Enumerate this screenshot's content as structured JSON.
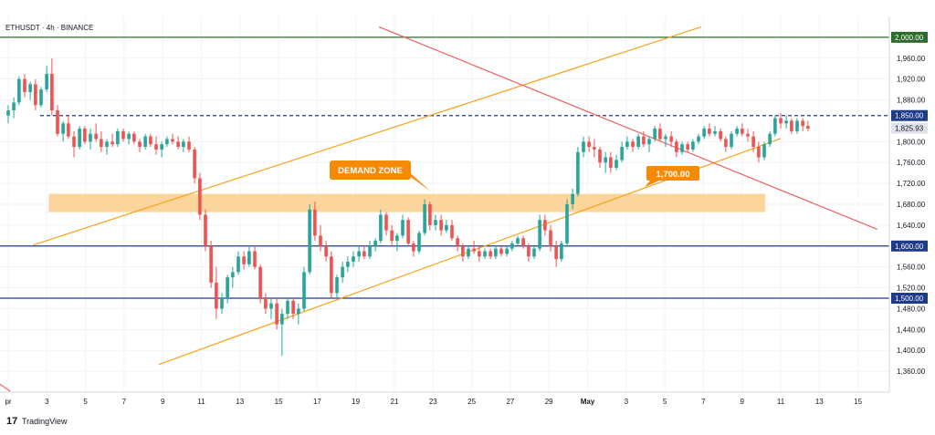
{
  "symbol_title": "ETHUSDT · 4h · BINANCE",
  "current_price": "1,825.93",
  "footer": {
    "brand": "TradingView",
    "logo_mark": "17"
  },
  "colors": {
    "up": "#26a69a",
    "down": "#ef5350",
    "channel": "#f7a21b",
    "trendline": "#f06060",
    "support": "#1e3a8a",
    "top_line": "#2e6b2e",
    "zone": "#fcd397",
    "label_orange": "#f58a07",
    "dashed": "#1e3a8a"
  },
  "chart_data": {
    "type": "candlestick",
    "symbol": "ETHUSDT",
    "interval": "4h",
    "exchange": "BINANCE",
    "yaxis": {
      "range": [
        1320,
        2040
      ],
      "ticks": [
        "1,360.00",
        "1,400.00",
        "1,440.00",
        "1,480.00",
        "1,520.00",
        "1,560.00",
        "1,640.00",
        "1,680.00",
        "1,720.00",
        "1,760.00",
        "1,800.00",
        "1,880.00",
        "1,920.00",
        "1,960.00"
      ],
      "tick_values": [
        1360,
        1400,
        1440,
        1480,
        1520,
        1560,
        1640,
        1680,
        1720,
        1760,
        1800,
        1880,
        1920,
        1960
      ]
    },
    "xaxis": {
      "range": [
        1,
        16.3
      ],
      "labels": [
        "pr",
        "3",
        "5",
        "7",
        "9",
        "11",
        "13",
        "15",
        "17",
        "19",
        "21",
        "23",
        "25",
        "27",
        "29",
        "May",
        "3",
        "5",
        "7",
        "9",
        "11",
        "13",
        "15"
      ],
      "label_days": [
        1,
        3,
        5,
        7,
        9,
        11,
        13,
        15,
        17,
        19,
        21,
        23,
        25,
        27,
        29,
        31,
        33,
        35,
        37,
        39,
        41,
        43,
        45
      ]
    },
    "levels": [
      {
        "name": "top-resistance",
        "value": 2000,
        "label": "2,000.00",
        "style": "solid"
      },
      {
        "name": "dashed-resistance",
        "value": 1850,
        "label": "1,850.00",
        "style": "dashed"
      },
      {
        "name": "support-1600",
        "value": 1600,
        "label": "1,600.00",
        "style": "solid"
      },
      {
        "name": "support-1500",
        "value": 1500,
        "label": "1,500.00",
        "style": "solid"
      }
    ],
    "zone": {
      "label": "DEMAND ZONE",
      "low": 1665,
      "high": 1700,
      "from_day": 3.1,
      "to_day": 40.2
    },
    "trendlines": [
      {
        "name": "channel-upper",
        "points": [
          [
            2.3,
            1602
          ],
          [
            36.9,
            2020
          ]
        ]
      },
      {
        "name": "channel-lower",
        "points": [
          [
            8.8,
            1373
          ],
          [
            41.0,
            1806
          ]
        ]
      },
      {
        "name": "descending-resistance",
        "points": [
          [
            20.2,
            2020
          ],
          [
            46.0,
            1632
          ]
        ]
      },
      {
        "name": "descending-old",
        "points": [
          [
            0.3,
            1342
          ],
          [
            1.1,
            1322
          ]
        ]
      }
    ],
    "annotations": [
      {
        "text": "1,700.00",
        "day": 34.9,
        "price": 1700
      }
    ],
    "candles": [
      [
        0,
        1850,
        1870,
        1835,
        1860
      ],
      [
        0.17,
        1860,
        1885,
        1845,
        1875
      ],
      [
        0.33,
        1875,
        1925,
        1870,
        1920
      ],
      [
        0.5,
        1920,
        1930,
        1885,
        1895
      ],
      [
        0.67,
        1895,
        1915,
        1880,
        1910
      ],
      [
        0.83,
        1910,
        1920,
        1860,
        1870
      ],
      [
        1,
        1870,
        1905,
        1865,
        1900
      ],
      [
        1.17,
        1900,
        1945,
        1895,
        1930
      ],
      [
        1.33,
        1930,
        1960,
        1850,
        1860
      ],
      [
        1.5,
        1860,
        1870,
        1810,
        1815
      ],
      [
        1.67,
        1815,
        1840,
        1800,
        1835
      ],
      [
        1.83,
        1835,
        1850,
        1805,
        1810
      ],
      [
        2,
        1810,
        1820,
        1770,
        1790
      ],
      [
        2.17,
        1790,
        1830,
        1785,
        1825
      ],
      [
        2.33,
        1825,
        1830,
        1795,
        1800
      ],
      [
        2.5,
        1800,
        1825,
        1785,
        1815
      ],
      [
        2.67,
        1815,
        1835,
        1800,
        1805
      ],
      [
        2.83,
        1805,
        1820,
        1780,
        1790
      ],
      [
        3,
        1790,
        1805,
        1775,
        1800
      ],
      [
        3.17,
        1800,
        1815,
        1790,
        1795
      ],
      [
        3.33,
        1795,
        1825,
        1790,
        1820
      ],
      [
        3.5,
        1820,
        1825,
        1800,
        1805
      ],
      [
        3.67,
        1805,
        1820,
        1795,
        1815
      ],
      [
        3.83,
        1815,
        1820,
        1795,
        1800
      ],
      [
        4,
        1800,
        1805,
        1780,
        1790
      ],
      [
        4.17,
        1790,
        1815,
        1785,
        1810
      ],
      [
        4.33,
        1810,
        1815,
        1790,
        1795
      ],
      [
        4.5,
        1795,
        1810,
        1775,
        1785
      ],
      [
        4.67,
        1785,
        1800,
        1770,
        1795
      ],
      [
        4.83,
        1795,
        1810,
        1790,
        1805
      ],
      [
        5,
        1805,
        1815,
        1795,
        1800
      ],
      [
        5.17,
        1800,
        1810,
        1785,
        1790
      ],
      [
        5.33,
        1790,
        1805,
        1780,
        1800
      ],
      [
        5.5,
        1800,
        1810,
        1780,
        1785
      ],
      [
        5.67,
        1785,
        1790,
        1720,
        1730
      ],
      [
        5.83,
        1730,
        1740,
        1650,
        1660
      ],
      [
        6,
        1660,
        1670,
        1590,
        1600
      ],
      [
        6.17,
        1600,
        1610,
        1520,
        1530
      ],
      [
        6.33,
        1530,
        1560,
        1460,
        1480
      ],
      [
        6.5,
        1480,
        1510,
        1470,
        1500
      ],
      [
        6.67,
        1500,
        1545,
        1490,
        1540
      ],
      [
        6.83,
        1540,
        1560,
        1520,
        1550
      ],
      [
        7,
        1550,
        1590,
        1545,
        1580
      ],
      [
        7.17,
        1580,
        1590,
        1555,
        1565
      ],
      [
        7.33,
        1565,
        1600,
        1560,
        1590
      ],
      [
        7.5,
        1590,
        1600,
        1555,
        1560
      ],
      [
        7.67,
        1560,
        1565,
        1490,
        1500
      ],
      [
        7.83,
        1500,
        1510,
        1470,
        1480
      ],
      [
        8,
        1480,
        1500,
        1460,
        1490
      ],
      [
        8.17,
        1490,
        1500,
        1440,
        1450
      ],
      [
        8.33,
        1450,
        1480,
        1390,
        1470
      ],
      [
        8.5,
        1470,
        1500,
        1460,
        1495
      ],
      [
        8.67,
        1495,
        1500,
        1460,
        1470
      ],
      [
        8.83,
        1470,
        1490,
        1450,
        1480
      ],
      [
        9,
        1480,
        1560,
        1475,
        1550
      ],
      [
        9.17,
        1550,
        1680,
        1545,
        1670
      ],
      [
        9.33,
        1670,
        1685,
        1610,
        1620
      ],
      [
        9.5,
        1620,
        1640,
        1590,
        1600
      ],
      [
        9.67,
        1600,
        1610,
        1570,
        1580
      ],
      [
        9.83,
        1580,
        1590,
        1500,
        1510
      ],
      [
        10,
        1510,
        1545,
        1500,
        1540
      ],
      [
        10.17,
        1540,
        1570,
        1530,
        1560
      ],
      [
        10.33,
        1560,
        1580,
        1550,
        1570
      ],
      [
        10.5,
        1570,
        1590,
        1560,
        1580
      ],
      [
        10.67,
        1580,
        1600,
        1570,
        1590
      ],
      [
        10.83,
        1590,
        1600,
        1575,
        1580
      ],
      [
        11,
        1580,
        1610,
        1575,
        1600
      ],
      [
        11.17,
        1600,
        1615,
        1590,
        1610
      ],
      [
        11.33,
        1610,
        1670,
        1605,
        1660
      ],
      [
        11.5,
        1660,
        1665,
        1620,
        1630
      ],
      [
        11.67,
        1630,
        1640,
        1600,
        1610
      ],
      [
        11.83,
        1610,
        1625,
        1590,
        1620
      ],
      [
        12,
        1620,
        1660,
        1615,
        1650
      ],
      [
        12.17,
        1650,
        1655,
        1600,
        1605
      ],
      [
        12.33,
        1605,
        1610,
        1580,
        1590
      ],
      [
        12.5,
        1590,
        1630,
        1585,
        1625
      ],
      [
        12.67,
        1625,
        1690,
        1620,
        1680
      ],
      [
        12.83,
        1680,
        1685,
        1630,
        1640
      ],
      [
        13,
        1640,
        1660,
        1630,
        1650
      ],
      [
        13.17,
        1650,
        1660,
        1620,
        1630
      ],
      [
        13.33,
        1630,
        1650,
        1625,
        1640
      ],
      [
        13.5,
        1640,
        1650,
        1610,
        1615
      ],
      [
        13.67,
        1615,
        1620,
        1590,
        1600
      ],
      [
        13.83,
        1600,
        1605,
        1570,
        1580
      ],
      [
        14,
        1580,
        1600,
        1575,
        1595
      ],
      [
        14.17,
        1595,
        1610,
        1585,
        1590
      ],
      [
        14.33,
        1590,
        1600,
        1570,
        1580
      ],
      [
        14.5,
        1580,
        1595,
        1575,
        1590
      ],
      [
        14.67,
        1590,
        1595,
        1575,
        1580
      ],
      [
        14.83,
        1580,
        1600,
        1575,
        1595
      ],
      [
        15,
        1595,
        1600,
        1580,
        1585
      ],
      [
        15.17,
        1585,
        1600,
        1580,
        1595
      ],
      [
        15.33,
        1595,
        1610,
        1590,
        1605
      ],
      [
        15.5,
        1605,
        1620,
        1600,
        1615
      ],
      [
        15.67,
        1615,
        1620,
        1595,
        1600
      ],
      [
        15.83,
        1600,
        1605,
        1570,
        1580
      ],
      [
        16,
        1580,
        1600,
        1575,
        1595
      ],
      [
        16.17,
        1595,
        1660,
        1590,
        1650
      ],
      [
        16.33,
        1650,
        1660,
        1620,
        1630
      ],
      [
        16.5,
        1630,
        1640,
        1590,
        1600
      ],
      [
        16.67,
        1600,
        1610,
        1560,
        1575
      ],
      [
        16.83,
        1575,
        1610,
        1570,
        1605
      ],
      [
        17,
        1605,
        1690,
        1600,
        1680
      ],
      [
        17.17,
        1680,
        1710,
        1670,
        1700
      ],
      [
        17.33,
        1700,
        1790,
        1695,
        1780
      ],
      [
        17.5,
        1780,
        1810,
        1770,
        1800
      ],
      [
        17.67,
        1800,
        1810,
        1780,
        1790
      ],
      [
        17.83,
        1790,
        1805,
        1770,
        1785
      ],
      [
        18,
        1785,
        1790,
        1750,
        1760
      ],
      [
        18.17,
        1760,
        1780,
        1740,
        1770
      ],
      [
        18.33,
        1770,
        1780,
        1740,
        1750
      ],
      [
        18.5,
        1750,
        1775,
        1745,
        1765
      ],
      [
        18.67,
        1765,
        1800,
        1760,
        1790
      ],
      [
        18.83,
        1790,
        1810,
        1785,
        1800
      ],
      [
        19,
        1800,
        1805,
        1780,
        1790
      ],
      [
        19.17,
        1790,
        1815,
        1785,
        1810
      ],
      [
        19.33,
        1810,
        1820,
        1790,
        1795
      ],
      [
        19.5,
        1795,
        1810,
        1780,
        1805
      ],
      [
        19.67,
        1805,
        1830,
        1800,
        1825
      ],
      [
        19.83,
        1825,
        1835,
        1800,
        1805
      ],
      [
        20,
        1805,
        1815,
        1790,
        1810
      ],
      [
        20.17,
        1810,
        1820,
        1790,
        1800
      ],
      [
        20.33,
        1800,
        1805,
        1770,
        1780
      ],
      [
        20.5,
        1780,
        1800,
        1775,
        1795
      ],
      [
        20.67,
        1795,
        1800,
        1780,
        1785
      ],
      [
        20.83,
        1785,
        1805,
        1780,
        1800
      ],
      [
        21,
        1800,
        1815,
        1795,
        1810
      ],
      [
        21.17,
        1810,
        1830,
        1805,
        1825
      ],
      [
        21.33,
        1825,
        1835,
        1810,
        1815
      ],
      [
        21.5,
        1815,
        1830,
        1810,
        1820
      ],
      [
        21.67,
        1820,
        1825,
        1800,
        1805
      ],
      [
        21.83,
        1805,
        1810,
        1780,
        1790
      ],
      [
        22,
        1790,
        1820,
        1785,
        1815
      ],
      [
        22.17,
        1815,
        1830,
        1810,
        1825
      ],
      [
        22.33,
        1825,
        1835,
        1810,
        1815
      ],
      [
        22.5,
        1815,
        1825,
        1800,
        1810
      ],
      [
        22.67,
        1810,
        1820,
        1780,
        1790
      ],
      [
        22.83,
        1790,
        1800,
        1760,
        1770
      ],
      [
        23,
        1770,
        1800,
        1765,
        1795
      ],
      [
        23.17,
        1795,
        1820,
        1790,
        1815
      ],
      [
        23.33,
        1815,
        1850,
        1810,
        1845
      ],
      [
        23.5,
        1845,
        1855,
        1825,
        1835
      ],
      [
        23.67,
        1835,
        1850,
        1825,
        1840
      ],
      [
        23.83,
        1840,
        1845,
        1815,
        1820
      ],
      [
        24,
        1820,
        1845,
        1815,
        1840
      ],
      [
        24.17,
        1840,
        1845,
        1820,
        1830
      ],
      [
        24.33,
        1830,
        1840,
        1820,
        1825
      ]
    ]
  }
}
